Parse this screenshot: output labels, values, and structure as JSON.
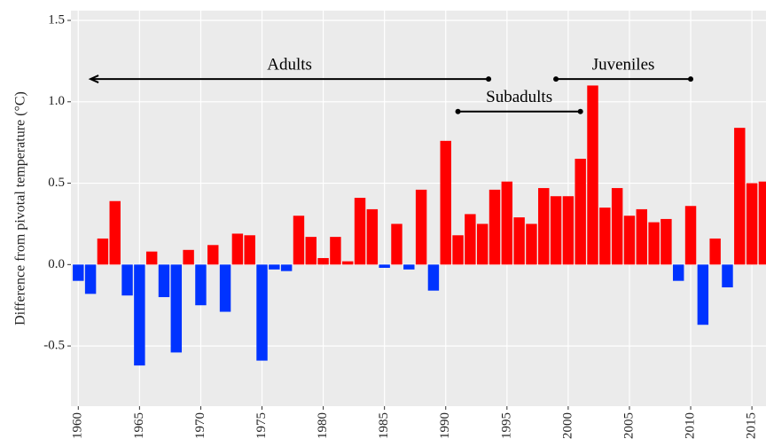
{
  "chart_data": {
    "type": "bar",
    "y_label": "Difference from pivotal temperature (°C)",
    "x": [
      1960,
      1961,
      1962,
      1963,
      1964,
      1965,
      1966,
      1967,
      1968,
      1969,
      1970,
      1971,
      1972,
      1973,
      1974,
      1975,
      1976,
      1977,
      1978,
      1979,
      1980,
      1981,
      1982,
      1983,
      1984,
      1985,
      1986,
      1987,
      1988,
      1989,
      1990,
      1991,
      1992,
      1993,
      1994,
      1995,
      1996,
      1997,
      1998,
      1999,
      2000,
      2001,
      2002,
      2003,
      2004,
      2005,
      2006,
      2007,
      2008,
      2009,
      2010,
      2011,
      2012,
      2013,
      2014,
      2015,
      2016
    ],
    "values": [
      -0.1,
      -0.18,
      0.16,
      0.39,
      -0.19,
      -0.62,
      0.08,
      -0.2,
      -0.54,
      0.09,
      -0.25,
      0.12,
      -0.29,
      0.19,
      0.18,
      -0.59,
      -0.03,
      -0.04,
      0.3,
      0.17,
      0.04,
      0.17,
      0.02,
      0.41,
      0.34,
      -0.02,
      0.25,
      -0.03,
      0.46,
      -0.16,
      0.76,
      0.18,
      0.31,
      0.25,
      0.46,
      0.51,
      0.29,
      0.25,
      0.47,
      0.42,
      0.42,
      0.65,
      1.1,
      0.35,
      0.47,
      0.3,
      0.34,
      0.26,
      0.28,
      -0.1,
      0.36,
      -0.37,
      0.16,
      -0.14,
      0.84,
      0.5,
      0.51
    ],
    "positive_color": "#ff0000",
    "negative_color": "#0033ff",
    "xlim": [
      1959.4,
      2016.15
    ],
    "xticks": [
      1960,
      1965,
      1970,
      1975,
      1980,
      1985,
      1990,
      1995,
      2000,
      2005,
      2010,
      2015
    ],
    "ylim": [
      -0.87,
      1.56
    ],
    "yticks": [
      -0.5,
      {
        "value": 0,
        "label": "0.0"
      },
      0.5,
      {
        "value": 1,
        "label": "1.0"
      },
      1.5
    ],
    "grid": true,
    "annotations": [
      {
        "text": "Adults",
        "x": [
          1961,
          1993.5
        ],
        "y": 1.14,
        "start": "arrow"
      },
      {
        "text": "Juveniles",
        "x": [
          1999,
          2010
        ],
        "y": 1.14,
        "start": "dot"
      },
      {
        "text": "Subadults",
        "x": [
          1991,
          2001
        ],
        "y": 0.94,
        "start": "dot"
      }
    ]
  }
}
